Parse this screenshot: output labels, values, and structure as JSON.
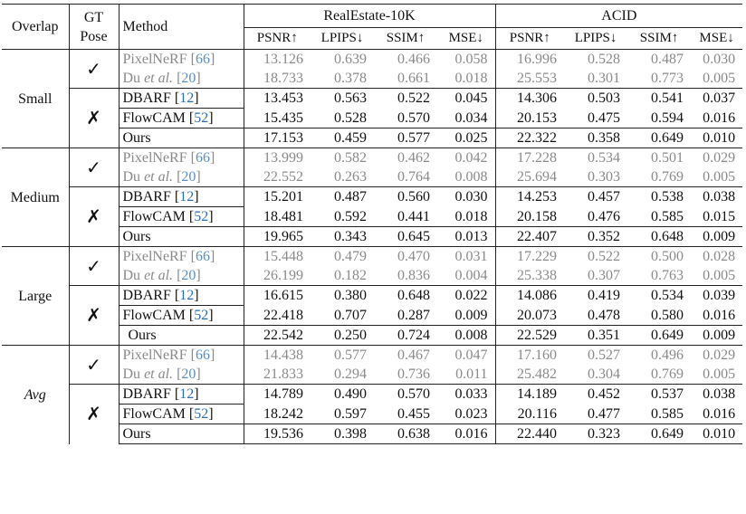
{
  "headers": {
    "overlap": "Overlap",
    "gt_pose_line1": "GT",
    "gt_pose_line2": "Pose",
    "method": "Method",
    "dataset1": "RealEstate-10K",
    "dataset2": "ACID",
    "metrics": [
      "PSNR↑",
      "LPIPS↓",
      "SSIM↑",
      "MSE↓"
    ]
  },
  "marks": {
    "check": "✓",
    "cross": "✗"
  },
  "groups": [
    {
      "overlap": "Small",
      "rows": [
        {
          "name": "PixelNeRF ",
          "cite": "66",
          "re": [
            "13.126",
            "0.639",
            "0.466",
            "0.058"
          ],
          "acid": [
            "16.996",
            "0.528",
            "0.487",
            "0.030"
          ]
        },
        {
          "name_pre": "Du ",
          "name_it": "et al.",
          "name_post": " ",
          "cite": "20",
          "re": [
            "18.733",
            "0.378",
            "0.661",
            "0.018"
          ],
          "acid": [
            "25.553",
            "0.301",
            "0.773",
            "0.005"
          ]
        },
        {
          "name": "DBARF ",
          "cite": "12",
          "re": [
            "13.453",
            "0.563",
            "0.522",
            "0.045"
          ],
          "acid": [
            "14.306",
            "0.503",
            "0.541",
            "0.037"
          ]
        },
        {
          "name": "FlowCAM ",
          "cite": "52",
          "re": [
            "15.435",
            "0.528",
            "0.570",
            "0.034"
          ],
          "acid": [
            "20.153",
            "0.475",
            "0.594",
            "0.016"
          ]
        },
        {
          "name": "Ours",
          "re": [
            "17.153",
            "0.459",
            "0.577",
            "0.025"
          ],
          "acid": [
            "22.322",
            "0.358",
            "0.649",
            "0.010"
          ]
        }
      ]
    },
    {
      "overlap": "Medium",
      "rows": [
        {
          "name": "PixelNeRF ",
          "cite": "66",
          "re": [
            "13.999",
            "0.582",
            "0.462",
            "0.042"
          ],
          "acid": [
            "17.228",
            "0.534",
            "0.501",
            "0.029"
          ]
        },
        {
          "name_pre": "Du ",
          "name_it": "et al.",
          "name_post": " ",
          "cite": "20",
          "re": [
            "22.552",
            "0.263",
            "0.764",
            "0.008"
          ],
          "acid": [
            "25.694",
            "0.303",
            "0.769",
            "0.005"
          ]
        },
        {
          "name": "DBARF ",
          "cite": "12",
          "re": [
            "15.201",
            "0.487",
            "0.560",
            "0.030"
          ],
          "acid": [
            "14.253",
            "0.457",
            "0.538",
            "0.038"
          ]
        },
        {
          "name": "FlowCAM ",
          "cite": "52",
          "re": [
            "18.481",
            "0.592",
            "0.441",
            "0.018"
          ],
          "acid": [
            "20.158",
            "0.476",
            "0.585",
            "0.015"
          ]
        },
        {
          "name": "Ours",
          "re": [
            "19.965",
            "0.343",
            "0.645",
            "0.013"
          ],
          "acid": [
            "22.407",
            "0.352",
            "0.648",
            "0.009"
          ]
        }
      ]
    },
    {
      "overlap": "Large",
      "rows": [
        {
          "name": "PixelNeRF ",
          "cite": "66",
          "re": [
            "15.448",
            "0.479",
            "0.470",
            "0.031"
          ],
          "acid": [
            "17.229",
            "0.522",
            "0.500",
            "0.028"
          ]
        },
        {
          "name_pre": "Du ",
          "name_it": "et al.",
          "name_post": " ",
          "cite": "20",
          "re": [
            "26.199",
            "0.182",
            "0.836",
            "0.004"
          ],
          "acid": [
            "25.338",
            "0.307",
            "0.763",
            "0.005"
          ]
        },
        {
          "name": "DBARF ",
          "cite": "12",
          "re": [
            "16.615",
            "0.380",
            "0.648",
            "0.022"
          ],
          "acid": [
            "14.086",
            "0.419",
            "0.534",
            "0.039"
          ]
        },
        {
          "name": "FlowCAM ",
          "cite": "52",
          "re": [
            "22.418",
            "0.707",
            "0.287",
            "0.009"
          ],
          "acid": [
            "20.073",
            "0.478",
            "0.580",
            "0.016"
          ]
        },
        {
          "name": "Ours",
          "re": [
            "22.542",
            "0.250",
            "0.724",
            "0.008"
          ],
          "acid": [
            "22.529",
            "0.351",
            "0.649",
            "0.009"
          ]
        }
      ]
    },
    {
      "overlap": "Avg",
      "rows": [
        {
          "name": "PixelNeRF ",
          "cite": "66",
          "re": [
            "14.438",
            "0.577",
            "0.467",
            "0.047"
          ],
          "acid": [
            "17.160",
            "0.527",
            "0.496",
            "0.029"
          ]
        },
        {
          "name_pre": "Du ",
          "name_it": "et al.",
          "name_post": " ",
          "cite": "20",
          "re": [
            "21.833",
            "0.294",
            "0.736",
            "0.011"
          ],
          "acid": [
            "25.482",
            "0.304",
            "0.769",
            "0.005"
          ]
        },
        {
          "name": "DBARF ",
          "cite": "12",
          "re": [
            "14.789",
            "0.490",
            "0.570",
            "0.033"
          ],
          "acid": [
            "14.189",
            "0.452",
            "0.537",
            "0.038"
          ]
        },
        {
          "name": "FlowCAM ",
          "cite": "52",
          "re": [
            "18.242",
            "0.597",
            "0.455",
            "0.023"
          ],
          "acid": [
            "20.116",
            "0.477",
            "0.585",
            "0.016"
          ]
        },
        {
          "name": "Ours",
          "re": [
            "19.536",
            "0.398",
            "0.638",
            "0.016"
          ],
          "acid": [
            "22.440",
            "0.323",
            "0.649",
            "0.010"
          ]
        }
      ]
    }
  ]
}
